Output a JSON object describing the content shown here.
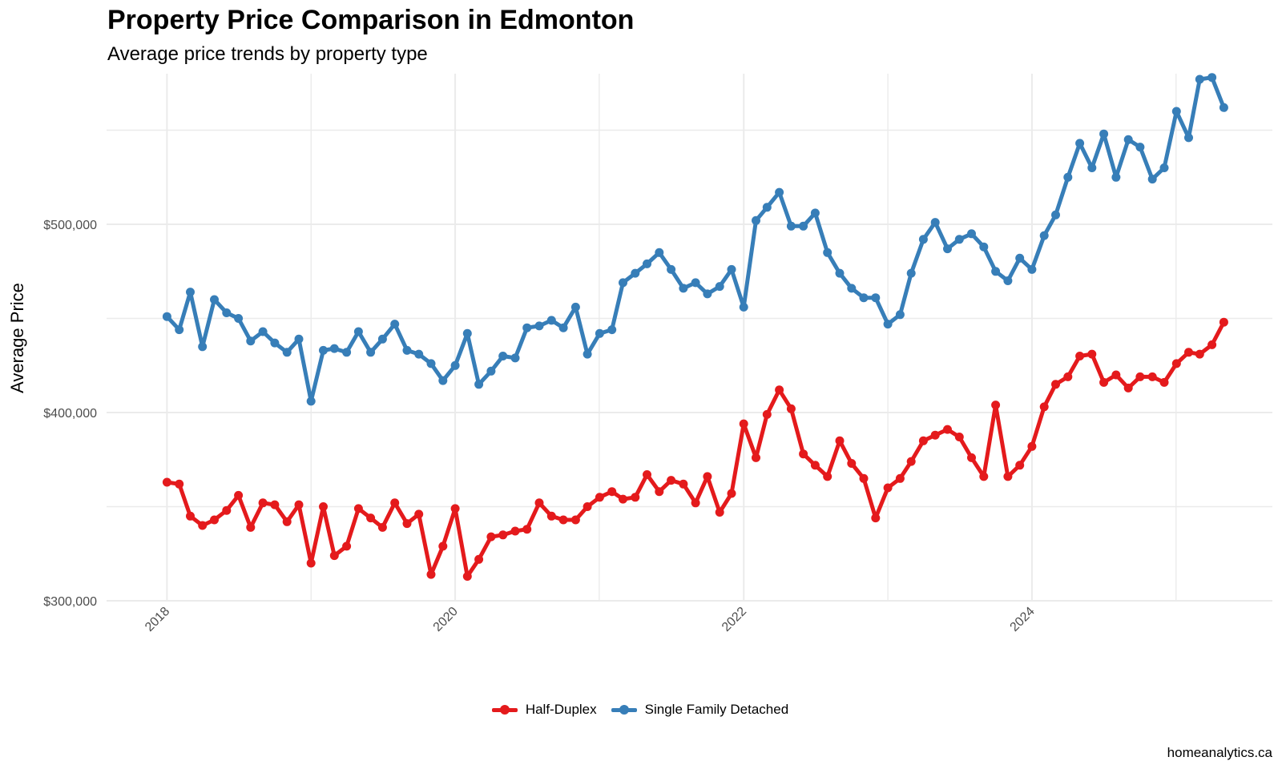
{
  "title": "Property Price Comparison in Edmonton",
  "subtitle": "Average price trends by property type",
  "caption": "homeanalytics.ca",
  "colors": {
    "half_duplex": "#E41A1C",
    "single_family": "#377EB8",
    "grid": "#EBEBEB"
  },
  "legend": [
    {
      "label": "Half-Duplex",
      "color": "#E41A1C"
    },
    {
      "label": "Single Family Detached",
      "color": "#377EB8"
    }
  ],
  "chart_data": {
    "type": "line",
    "title": "Property Price Comparison in Edmonton",
    "subtitle": "Average price trends by property type",
    "xlabel": "",
    "ylabel": "Average Price",
    "x_type": "date",
    "xlim": [
      "2017-08-01",
      "2025-09-01"
    ],
    "ylim": [
      300000,
      580000
    ],
    "x_ticks": [
      "2018-01-01",
      "2020-01-01",
      "2022-01-01",
      "2024-01-01"
    ],
    "x_tick_labels": [
      "2018",
      "2020",
      "2022",
      "2024"
    ],
    "y_ticks": [
      300000,
      400000,
      500000
    ],
    "y_tick_labels": [
      "$300,000",
      "$400,000",
      "$500,000"
    ],
    "grid": true,
    "legend_position": "bottom",
    "x": [
      "2018-01-01",
      "2018-02-01",
      "2018-03-01",
      "2018-04-01",
      "2018-05-01",
      "2018-06-01",
      "2018-07-01",
      "2018-08-01",
      "2018-09-01",
      "2018-10-01",
      "2018-11-01",
      "2018-12-01",
      "2019-01-01",
      "2019-02-01",
      "2019-03-01",
      "2019-04-01",
      "2019-05-01",
      "2019-06-01",
      "2019-07-01",
      "2019-08-01",
      "2019-09-01",
      "2019-10-01",
      "2019-11-01",
      "2019-12-01",
      "2020-01-01",
      "2020-02-01",
      "2020-03-01",
      "2020-04-01",
      "2020-05-01",
      "2020-06-01",
      "2020-07-01",
      "2020-08-01",
      "2020-09-01",
      "2020-10-01",
      "2020-11-01",
      "2020-12-01",
      "2021-01-01",
      "2021-02-01",
      "2021-03-01",
      "2021-04-01",
      "2021-05-01",
      "2021-06-01",
      "2021-07-01",
      "2021-08-01",
      "2021-09-01",
      "2021-10-01",
      "2021-11-01",
      "2021-12-01",
      "2022-01-01",
      "2022-02-01",
      "2022-03-01",
      "2022-04-01",
      "2022-05-01",
      "2022-06-01",
      "2022-07-01",
      "2022-08-01",
      "2022-09-01",
      "2022-10-01",
      "2022-11-01",
      "2022-12-01",
      "2023-01-01",
      "2023-02-01",
      "2023-03-01",
      "2023-04-01",
      "2023-05-01",
      "2023-06-01",
      "2023-07-01",
      "2023-08-01",
      "2023-09-01",
      "2023-10-01",
      "2023-11-01",
      "2023-12-01",
      "2024-01-01",
      "2024-02-01",
      "2024-03-01",
      "2024-04-01",
      "2024-05-01",
      "2024-06-01",
      "2024-07-01",
      "2024-08-01",
      "2024-09-01",
      "2024-10-01",
      "2024-11-01",
      "2024-12-01",
      "2025-01-01",
      "2025-02-01",
      "2025-03-01",
      "2025-04-01",
      "2025-05-01"
    ],
    "series": [
      {
        "name": "Half-Duplex",
        "color": "#E41A1C",
        "values": [
          363000,
          362000,
          345000,
          340000,
          343000,
          348000,
          356000,
          339000,
          352000,
          351000,
          342000,
          351000,
          320000,
          350000,
          324000,
          329000,
          349000,
          344000,
          339000,
          352000,
          341000,
          346000,
          314000,
          329000,
          349000,
          313000,
          322000,
          334000,
          335000,
          337000,
          338000,
          352000,
          345000,
          343000,
          343000,
          350000,
          355000,
          358000,
          354000,
          355000,
          367000,
          358000,
          364000,
          362000,
          352000,
          366000,
          347000,
          357000,
          394000,
          376000,
          399000,
          412000,
          402000,
          378000,
          372000,
          366000,
          385000,
          373000,
          365000,
          344000,
          360000,
          365000,
          374000,
          385000,
          388000,
          391000,
          387000,
          376000,
          366000,
          404000,
          366000,
          372000,
          382000,
          403000,
          415000,
          419000,
          430000,
          431000,
          416000,
          420000,
          413000,
          419000,
          419000,
          416000,
          426000,
          432000,
          431000,
          436000,
          448000
        ]
      },
      {
        "name": "Single Family Detached",
        "color": "#377EB8",
        "values": [
          451000,
          444000,
          464000,
          435000,
          460000,
          453000,
          450000,
          438000,
          443000,
          437000,
          432000,
          439000,
          406000,
          433000,
          434000,
          432000,
          443000,
          432000,
          439000,
          447000,
          433000,
          431000,
          426000,
          417000,
          425000,
          442000,
          415000,
          422000,
          430000,
          429000,
          445000,
          446000,
          449000,
          445000,
          456000,
          431000,
          442000,
          444000,
          469000,
          474000,
          479000,
          485000,
          476000,
          466000,
          469000,
          463000,
          467000,
          476000,
          456000,
          502000,
          509000,
          517000,
          499000,
          499000,
          506000,
          485000,
          474000,
          466000,
          461000,
          461000,
          447000,
          452000,
          474000,
          492000,
          501000,
          487000,
          492000,
          495000,
          488000,
          475000,
          470000,
          482000,
          476000,
          494000,
          505000,
          525000,
          543000,
          530000,
          548000,
          525000,
          545000,
          541000,
          524000,
          530000,
          560000,
          546000,
          577000,
          578000,
          562000
        ]
      }
    ]
  }
}
